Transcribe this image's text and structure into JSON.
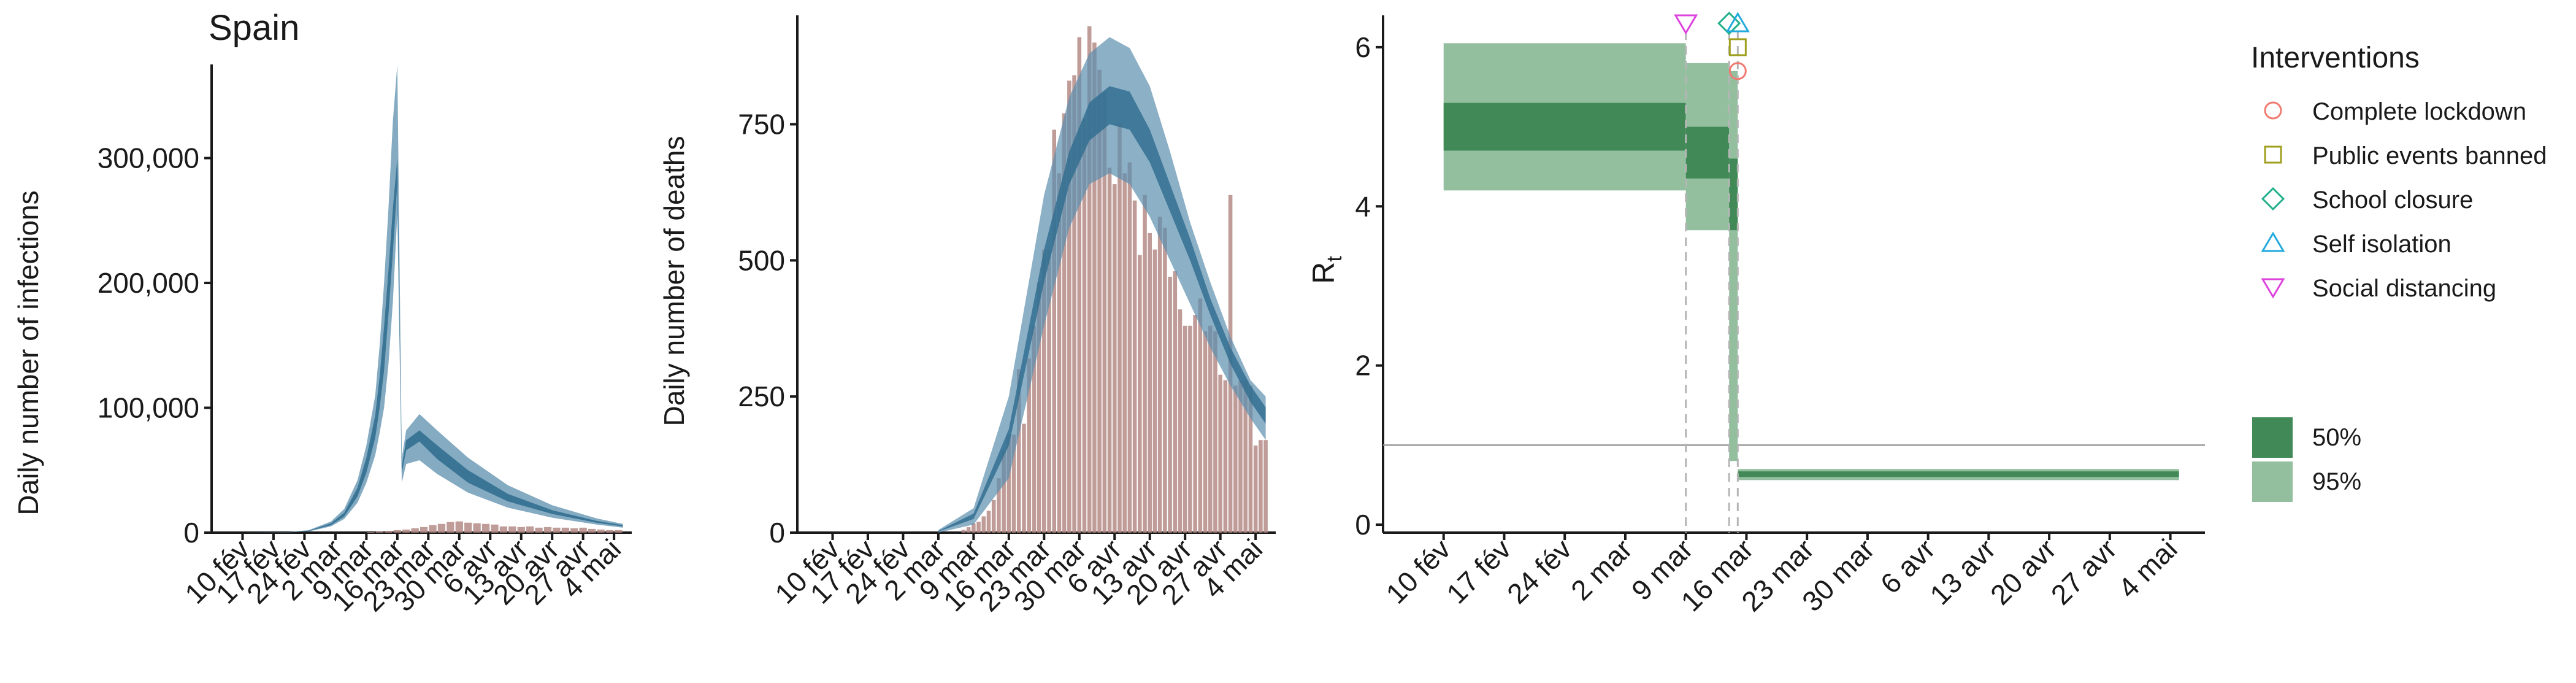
{
  "title": "Spain",
  "colors": {
    "band_outer": "#5b8fae",
    "band_inner": "#2e6b8e",
    "bar": "#b58b86",
    "rt_outer": "#93bf9f",
    "rt_inner": "#418a58",
    "axis": "#1a1a1a",
    "ref_line": "#999999",
    "vline": "#b5b5b5",
    "lockdown": "#f07a70",
    "public_events": "#a0a020",
    "school": "#22b08a",
    "self_isolation": "#22aadd",
    "social_distancing": "#dd44dd"
  },
  "chart_data": [
    {
      "type": "area",
      "title": "Spain",
      "ylabel": "Daily number of infections",
      "ylim": [
        0,
        375000
      ],
      "yticks": [
        0,
        100000,
        200000,
        300000
      ],
      "yticklabels": [
        "0",
        "100,000",
        "200,000",
        "300,000"
      ],
      "xlim": [
        "2020-02-03",
        "2020-05-08"
      ],
      "xticks": [
        "2020-02-10",
        "2020-02-17",
        "2020-02-24",
        "2020-03-02",
        "2020-03-09",
        "2020-03-16",
        "2020-03-23",
        "2020-03-30",
        "2020-04-06",
        "2020-04-13",
        "2020-04-20",
        "2020-04-27",
        "2020-05-04"
      ],
      "xticklabels": [
        "10 fév",
        "17 fév",
        "24 fév",
        "2 mar",
        "9 mar",
        "16 mar",
        "23 mar",
        "30 mar",
        "6 avr",
        "13 avr",
        "20 avr",
        "27 avr",
        "4 mai"
      ],
      "x": [
        "2020-02-10",
        "2020-02-20",
        "2020-02-25",
        "2020-03-01",
        "2020-03-04",
        "2020-03-07",
        "2020-03-09",
        "2020-03-11",
        "2020-03-12",
        "2020-03-13",
        "2020-03-14",
        "2020-03-15",
        "2020-03-16",
        "2020-03-17",
        "2020-03-18",
        "2020-03-21",
        "2020-03-25",
        "2020-04-01",
        "2020-04-10",
        "2020-04-20",
        "2020-04-30",
        "2020-05-06"
      ],
      "series": [
        {
          "name": "95%",
          "lower": [
            0,
            200,
            1000,
            5000,
            11000,
            24000,
            40000,
            62000,
            80000,
            100000,
            135000,
            185000,
            255000,
            40000,
            55000,
            58000,
            47000,
            32000,
            20000,
            12000,
            6500,
            4000
          ],
          "upper": [
            0,
            400,
            2000,
            9000,
            19000,
            42000,
            70000,
            110000,
            150000,
            200000,
            260000,
            330000,
            375000,
            60000,
            82000,
            95000,
            82000,
            60000,
            38000,
            22000,
            11500,
            7000
          ]
        },
        {
          "name": "50%",
          "lower": [
            0,
            250,
            1300,
            6000,
            13000,
            29000,
            48000,
            76000,
            100000,
            130000,
            175000,
            225000,
            280000,
            48000,
            66000,
            73000,
            59000,
            40000,
            25000,
            15000,
            8000,
            5000
          ],
          "upper": [
            0,
            330,
            1600,
            7500,
            16000,
            36000,
            60000,
            94000,
            125000,
            165000,
            210000,
            260000,
            300000,
            53000,
            74000,
            82000,
            70000,
            50000,
            31000,
            18000,
            9500,
            6000
          ]
        }
      ],
      "bars": {
        "x": [
          "2020-03-10",
          "2020-03-12",
          "2020-03-14",
          "2020-03-16",
          "2020-03-18",
          "2020-03-20",
          "2020-03-22",
          "2020-03-24",
          "2020-03-26",
          "2020-03-28",
          "2020-03-30",
          "2020-04-01",
          "2020-04-03",
          "2020-04-05",
          "2020-04-07",
          "2020-04-09",
          "2020-04-11",
          "2020-04-13",
          "2020-04-15",
          "2020-04-17",
          "2020-04-19",
          "2020-04-21",
          "2020-04-23",
          "2020-04-25",
          "2020-04-27",
          "2020-04-29",
          "2020-05-01",
          "2020-05-03",
          "2020-05-05"
        ],
        "values": [
          500,
          800,
          1500,
          2000,
          2500,
          3500,
          4500,
          6000,
          7000,
          8500,
          9000,
          8000,
          7500,
          7000,
          6500,
          5000,
          5000,
          4500,
          5000,
          4000,
          4500,
          4000,
          4000,
          3500,
          4000,
          3000,
          2500,
          2000,
          2000
        ]
      }
    },
    {
      "type": "bar",
      "ylabel": "Daily number of deaths",
      "ylim": [
        0,
        950
      ],
      "yticks": [
        0,
        250,
        500,
        750
      ],
      "yticklabels": [
        "0",
        "250",
        "500",
        "750"
      ],
      "xlim": [
        "2020-02-03",
        "2020-05-08"
      ],
      "xticks": [
        "2020-02-10",
        "2020-02-17",
        "2020-02-24",
        "2020-03-02",
        "2020-03-09",
        "2020-03-16",
        "2020-03-23",
        "2020-03-30",
        "2020-04-06",
        "2020-04-13",
        "2020-04-20",
        "2020-04-27",
        "2020-05-04"
      ],
      "xticklabels": [
        "10 fév",
        "17 fév",
        "24 fév",
        "2 mar",
        "9 mar",
        "16 mar",
        "23 mar",
        "30 mar",
        "6 avr",
        "13 avr",
        "20 avr",
        "27 avr",
        "4 mai"
      ],
      "bars": {
        "x": [
          "2020-03-07",
          "2020-03-08",
          "2020-03-09",
          "2020-03-10",
          "2020-03-11",
          "2020-03-12",
          "2020-03-13",
          "2020-03-14",
          "2020-03-15",
          "2020-03-16",
          "2020-03-17",
          "2020-03-18",
          "2020-03-19",
          "2020-03-20",
          "2020-03-21",
          "2020-03-22",
          "2020-03-23",
          "2020-03-24",
          "2020-03-25",
          "2020-03-26",
          "2020-03-27",
          "2020-03-28",
          "2020-03-29",
          "2020-03-30",
          "2020-03-31",
          "2020-04-01",
          "2020-04-02",
          "2020-04-03",
          "2020-04-04",
          "2020-04-05",
          "2020-04-06",
          "2020-04-07",
          "2020-04-08",
          "2020-04-09",
          "2020-04-10",
          "2020-04-11",
          "2020-04-12",
          "2020-04-13",
          "2020-04-14",
          "2020-04-15",
          "2020-04-16",
          "2020-04-17",
          "2020-04-18",
          "2020-04-19",
          "2020-04-20",
          "2020-04-21",
          "2020-04-22",
          "2020-04-23",
          "2020-04-24",
          "2020-04-25",
          "2020-04-26",
          "2020-04-27",
          "2020-04-28",
          "2020-04-29",
          "2020-04-30",
          "2020-05-01",
          "2020-05-02",
          "2020-05-03",
          "2020-05-04",
          "2020-05-05",
          "2020-05-06"
        ],
        "values": [
          5,
          10,
          17,
          20,
          30,
          40,
          60,
          100,
          150,
          180,
          180,
          300,
          200,
          320,
          380,
          460,
          520,
          520,
          740,
          660,
          770,
          830,
          840,
          910,
          760,
          930,
          900,
          850,
          810,
          670,
          640,
          750,
          660,
          680,
          610,
          510,
          620,
          550,
          520,
          580,
          560,
          470,
          480,
          410,
          380,
          380,
          400,
          430,
          370,
          380,
          370,
          290,
          280,
          620,
          270,
          280,
          280,
          270,
          160,
          170,
          170
        ]
      },
      "series": [
        {
          "name": "95%",
          "x": [
            "2020-03-02",
            "2020-03-09",
            "2020-03-16",
            "2020-03-23",
            "2020-03-28",
            "2020-04-01",
            "2020-04-05",
            "2020-04-09",
            "2020-04-13",
            "2020-04-17",
            "2020-04-21",
            "2020-04-25",
            "2020-04-29",
            "2020-05-03",
            "2020-05-06"
          ],
          "lower": [
            0,
            15,
            100,
            380,
            560,
            640,
            660,
            640,
            580,
            500,
            420,
            340,
            270,
            210,
            170
          ],
          "upper": [
            5,
            45,
            250,
            620,
            800,
            880,
            910,
            890,
            820,
            700,
            570,
            460,
            360,
            280,
            250
          ]
        },
        {
          "name": "50%",
          "x": [
            "2020-03-02",
            "2020-03-09",
            "2020-03-16",
            "2020-03-23",
            "2020-03-28",
            "2020-04-01",
            "2020-04-05",
            "2020-04-09",
            "2020-04-13",
            "2020-04-17",
            "2020-04-21",
            "2020-04-25",
            "2020-04-29",
            "2020-05-03",
            "2020-05-06"
          ],
          "lower": [
            2,
            25,
            160,
            460,
            640,
            720,
            750,
            740,
            680,
            590,
            500,
            400,
            310,
            240,
            200
          ],
          "upper": [
            3,
            35,
            190,
            520,
            700,
            790,
            820,
            810,
            740,
            640,
            540,
            430,
            340,
            270,
            230
          ]
        }
      ]
    },
    {
      "type": "area",
      "ylabel": "R",
      "ylabel_sub": "t",
      "ylim": [
        -0.1,
        6.4
      ],
      "yticks": [
        0,
        2,
        4,
        6
      ],
      "yticklabels": [
        "0",
        "2",
        "4",
        "6"
      ],
      "xlim": [
        "2020-02-03",
        "2020-05-08"
      ],
      "xticks": [
        "2020-02-10",
        "2020-02-17",
        "2020-02-24",
        "2020-03-02",
        "2020-03-09",
        "2020-03-16",
        "2020-03-23",
        "2020-03-30",
        "2020-04-06",
        "2020-04-13",
        "2020-04-20",
        "2020-04-27",
        "2020-05-04"
      ],
      "xticklabels": [
        "10 fév",
        "17 fév",
        "24 fév",
        "2 mar",
        "9 mar",
        "16 mar",
        "23 mar",
        "30 mar",
        "6 avr",
        "13 avr",
        "20 avr",
        "27 avr",
        "4 mai"
      ],
      "reference_line": 1,
      "segments": [
        {
          "x": [
            "2020-02-10",
            "2020-03-09"
          ],
          "lo95": 4.2,
          "hi95": 6.05,
          "lo50": 4.7,
          "hi50": 5.3
        },
        {
          "x": [
            "2020-03-09",
            "2020-03-14"
          ],
          "lo95": 3.7,
          "hi95": 5.8,
          "lo50": 4.35,
          "hi50": 5.0
        },
        {
          "x": [
            "2020-03-14",
            "2020-03-15"
          ],
          "lo95": 0.8,
          "hi95": 5.7,
          "lo50": 3.7,
          "hi50": 4.6
        },
        {
          "x": [
            "2020-03-15",
            "2020-05-05"
          ],
          "lo95": 0.56,
          "hi95": 0.7,
          "lo50": 0.6,
          "hi50": 0.67
        }
      ],
      "interventions": [
        {
          "name": "Social distancing",
          "date": "2020-03-09",
          "y": 6.3,
          "shape": "triangle-down",
          "color_key": "social_distancing"
        },
        {
          "name": "School closure",
          "date": "2020-03-14",
          "y": 6.3,
          "shape": "diamond",
          "color_key": "school"
        },
        {
          "name": "Self isolation",
          "date": "2020-03-15",
          "y": 6.3,
          "shape": "triangle-up",
          "color_key": "self_isolation"
        },
        {
          "name": "Public events banned",
          "date": "2020-03-15",
          "y": 6.0,
          "shape": "square",
          "color_key": "public_events"
        },
        {
          "name": "Complete lockdown",
          "date": "2020-03-15",
          "y": 5.7,
          "shape": "circle",
          "color_key": "lockdown"
        }
      ],
      "legend": {
        "title": "Interventions",
        "position": "right",
        "items": [
          {
            "label": "Complete lockdown",
            "shape": "circle",
            "color_key": "lockdown"
          },
          {
            "label": "Public events banned",
            "shape": "square",
            "color_key": "public_events"
          },
          {
            "label": "School closure",
            "shape": "diamond",
            "color_key": "school"
          },
          {
            "label": "Self isolation",
            "shape": "triangle-up",
            "color_key": "self_isolation"
          },
          {
            "label": "Social distancing",
            "shape": "triangle-down",
            "color_key": "social_distancing"
          }
        ],
        "bands": [
          {
            "label": "50%",
            "color_key": "rt_inner"
          },
          {
            "label": "95%",
            "color_key": "rt_outer"
          }
        ]
      }
    }
  ]
}
